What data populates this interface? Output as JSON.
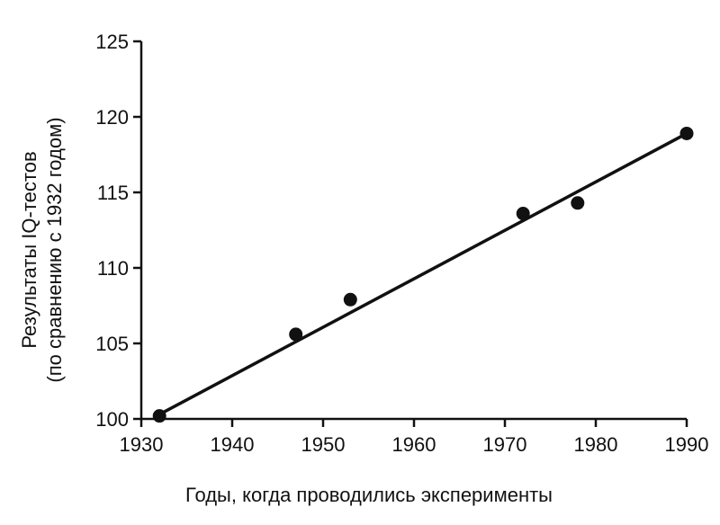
{
  "chart_data": {
    "type": "scatter",
    "title": "",
    "xlabel": "Годы, когда проводились эксперименты",
    "ylabel_line1": "Результаты IQ-тестов",
    "ylabel_line2": "(по сравнению с 1932 годом)",
    "xlim": [
      1930,
      1990
    ],
    "ylim": [
      100,
      125
    ],
    "xticks": [
      1930,
      1940,
      1950,
      1960,
      1970,
      1980,
      1990
    ],
    "yticks": [
      100,
      105,
      110,
      115,
      120,
      125
    ],
    "grid": false,
    "series": [
      {
        "points": [
          {
            "x": 1932,
            "y": 100.2
          },
          {
            "x": 1947,
            "y": 105.6
          },
          {
            "x": 1953,
            "y": 107.9
          },
          {
            "x": 1972,
            "y": 113.6
          },
          {
            "x": 1978,
            "y": 114.3
          },
          {
            "x": 1990,
            "y": 118.9
          }
        ]
      }
    ],
    "trendline": {
      "x": [
        1932,
        1990
      ],
      "y": [
        100.3,
        118.9
      ]
    }
  }
}
